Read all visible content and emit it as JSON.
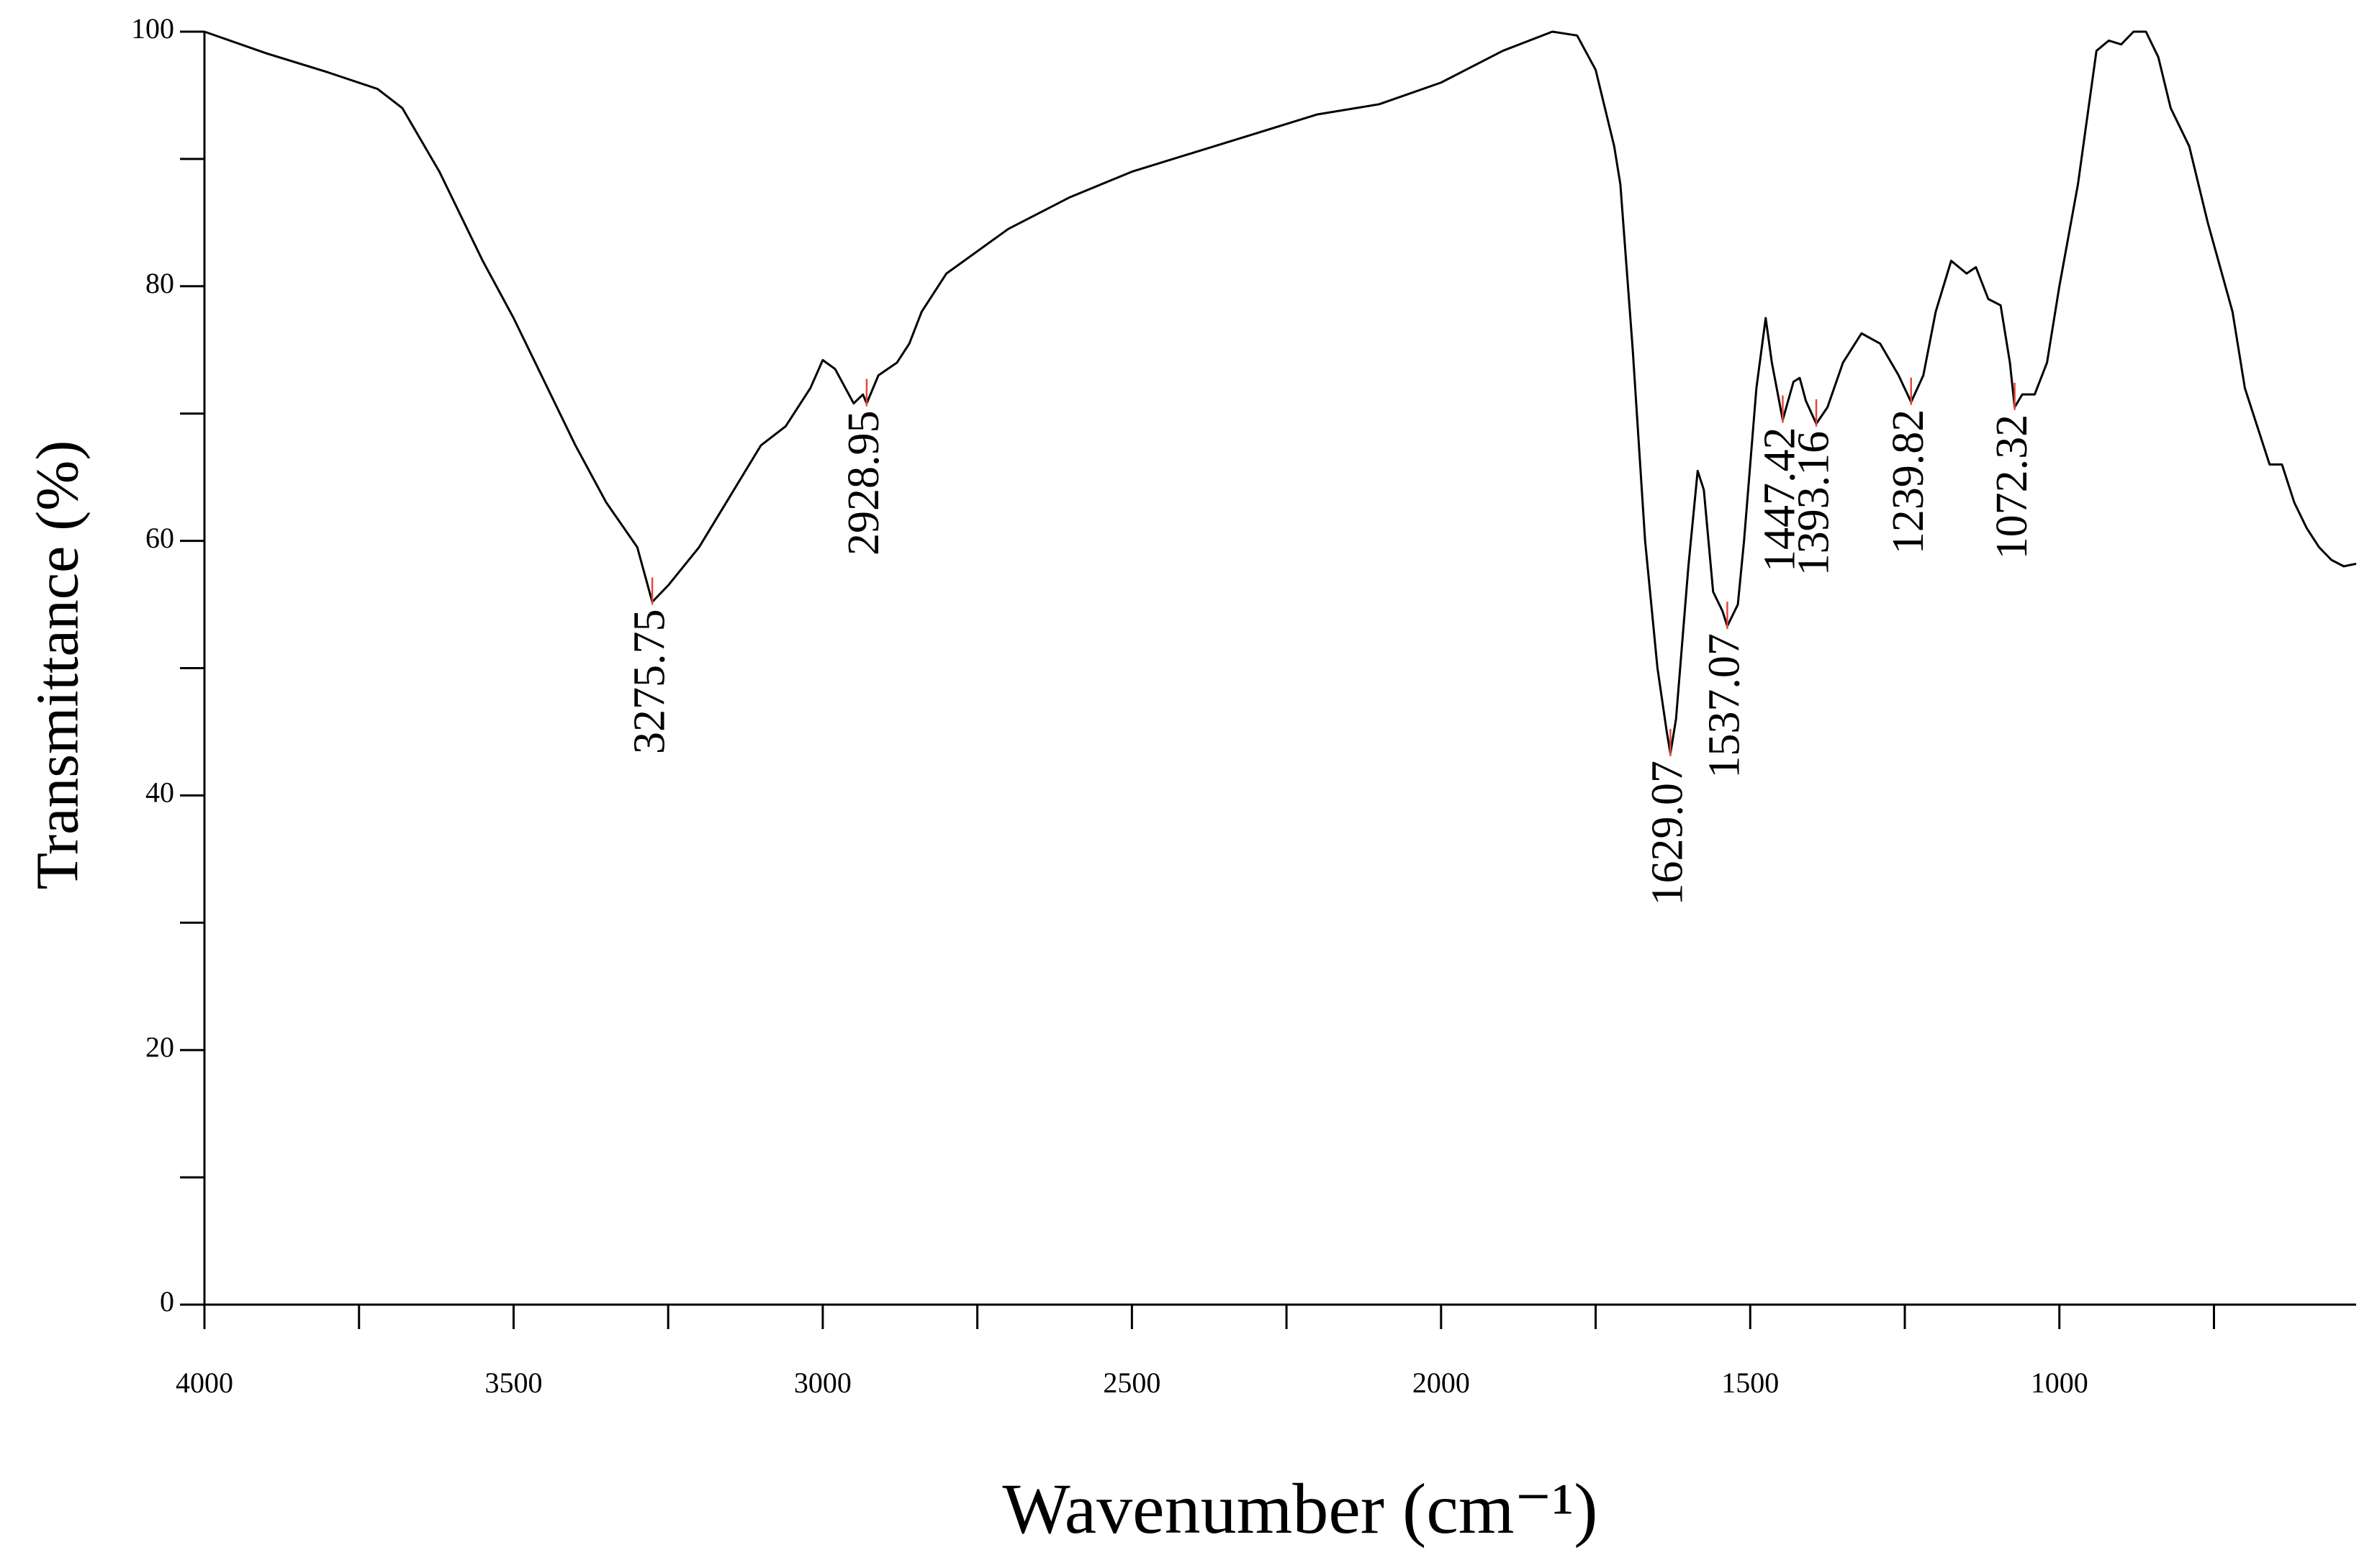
{
  "chart_data": {
    "type": "line",
    "x_label": "Wavenumber   (cm⁻¹)",
    "y_label": "Transmittance (%)",
    "xlim": [
      4000,
      520
    ],
    "ylim": [
      0,
      100
    ],
    "xticks": [
      4000,
      3500,
      3000,
      2500,
      2000,
      1500,
      1000
    ],
    "xminorticks": [
      3750,
      3250,
      2750,
      2250,
      1750,
      1250,
      750
    ],
    "yticks": [
      0,
      20,
      40,
      60,
      80,
      100
    ],
    "yminorticks": [
      10,
      30,
      50,
      70,
      90
    ],
    "color": "#000000",
    "peak_color": "#e8453c",
    "x": [
      4000,
      3900,
      3800,
      3720,
      3680,
      3620,
      3550,
      3500,
      3450,
      3400,
      3350,
      3300,
      3275.75,
      3250,
      3200,
      3150,
      3100,
      3060,
      3020,
      3000,
      2980,
      2950,
      2935,
      2928.95,
      2910,
      2880,
      2860,
      2840,
      2800,
      2700,
      2600,
      2500,
      2400,
      2300,
      2200,
      2100,
      2000,
      1900,
      1820,
      1780,
      1750,
      1720,
      1710,
      1690,
      1670,
      1650,
      1635,
      1629.07,
      1620,
      1600,
      1585,
      1575,
      1560,
      1545,
      1537.07,
      1520,
      1510,
      1490,
      1475,
      1465,
      1447.42,
      1430,
      1420,
      1410,
      1393.16,
      1375,
      1350,
      1320,
      1290,
      1260,
      1239.82,
      1220,
      1200,
      1175,
      1150,
      1135,
      1115,
      1095,
      1080,
      1072.32,
      1060,
      1040,
      1020,
      1000,
      970,
      940,
      920,
      900,
      880,
      860,
      840,
      820,
      790,
      760,
      720,
      700,
      680,
      660,
      640,
      620,
      600,
      580,
      560,
      540,
      520
    ],
    "values": [
      100,
      98.3,
      96.8,
      95.5,
      94,
      89,
      82,
      77.5,
      72.5,
      67.5,
      63,
      59.5,
      55.2,
      56.5,
      59.5,
      63.5,
      67.5,
      69,
      72,
      74.2,
      73.5,
      70.8,
      71.5,
      70.8,
      73,
      74,
      75.5,
      78,
      81,
      84.5,
      87,
      89,
      90.5,
      92,
      93.5,
      94.3,
      96,
      98.5,
      100,
      99.7,
      97,
      91,
      88,
      75,
      60,
      50,
      45,
      43.3,
      46,
      58,
      65.5,
      64,
      56,
      54.5,
      53.3,
      55,
      60,
      72,
      77.5,
      74,
      69.5,
      72.5,
      72.8,
      71,
      69.2,
      70.5,
      74,
      76.3,
      75.5,
      73,
      70.9,
      73,
      78,
      82,
      81,
      81.5,
      79,
      78.5,
      74,
      70.5,
      71.5,
      71.5,
      74,
      80,
      88,
      98.5,
      99.3,
      99,
      100,
      100,
      98,
      94,
      91,
      85,
      78,
      72,
      69,
      66,
      66,
      63,
      61,
      59.5,
      58.5,
      58,
      58.2
    ],
    "peaks": [
      {
        "x": 3275.75,
        "y": 55.2
      },
      {
        "x": 2928.95,
        "y": 70.8
      },
      {
        "x": 1629.07,
        "y": 43.3
      },
      {
        "x": 1537.07,
        "y": 53.3
      },
      {
        "x": 1447.42,
        "y": 69.5
      },
      {
        "x": 1393.16,
        "y": 69.2
      },
      {
        "x": 1239.82,
        "y": 70.9
      },
      {
        "x": 1072.32,
        "y": 70.5
      }
    ]
  }
}
